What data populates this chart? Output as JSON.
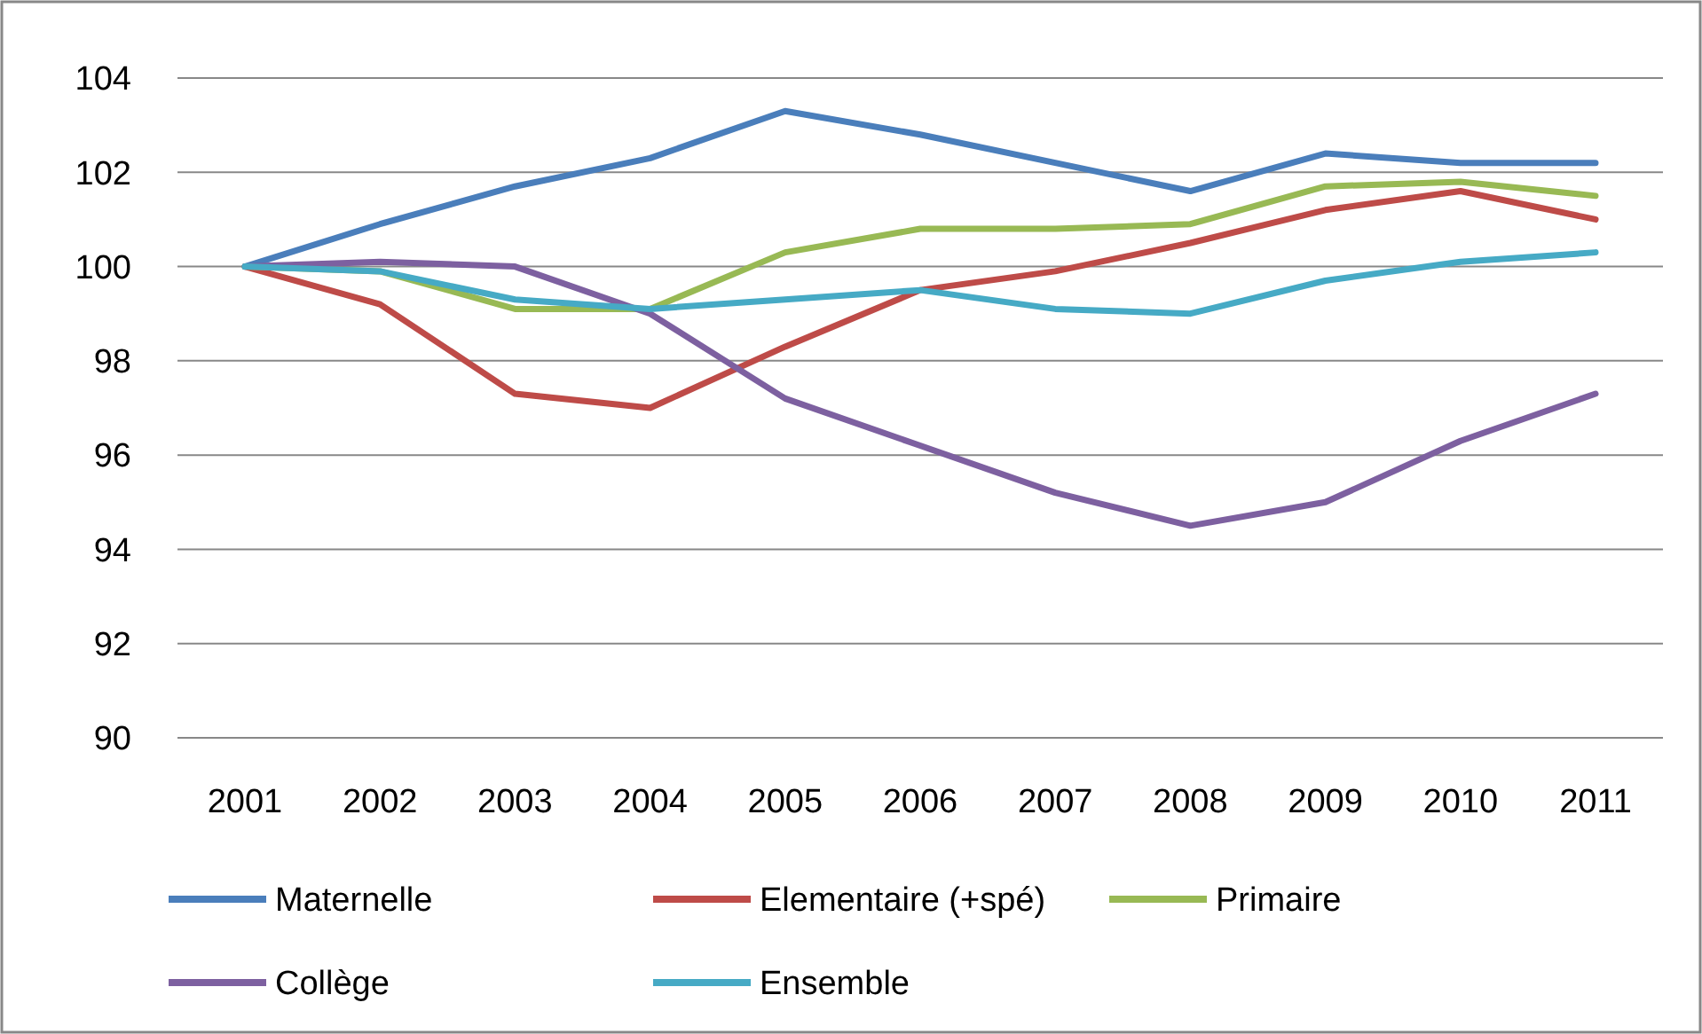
{
  "chart_data": {
    "type": "line",
    "categories": [
      "2001",
      "2002",
      "2003",
      "2004",
      "2005",
      "2006",
      "2007",
      "2008",
      "2009",
      "2010",
      "2011"
    ],
    "series": [
      {
        "name": "Maternelle",
        "color": "#4a7ebb",
        "values": [
          100,
          100.9,
          101.7,
          102.3,
          103.3,
          102.8,
          102.2,
          101.6,
          102.4,
          102.2,
          102.2
        ]
      },
      {
        "name": "Elementaire (+spé)",
        "color": "#be4b48",
        "values": [
          100,
          99.2,
          97.3,
          97.0,
          98.3,
          99.5,
          99.9,
          100.5,
          101.2,
          101.6,
          101.0
        ]
      },
      {
        "name": "Primaire",
        "color": "#98b954",
        "values": [
          100,
          99.9,
          99.1,
          99.1,
          100.3,
          100.8,
          100.8,
          100.9,
          101.7,
          101.8,
          101.5
        ]
      },
      {
        "name": "Collège",
        "color": "#7d60a0",
        "values": [
          100,
          100.1,
          100.0,
          99.0,
          97.2,
          96.2,
          95.2,
          94.5,
          95.0,
          96.3,
          97.3
        ]
      },
      {
        "name": "Ensemble",
        "color": "#46aac5",
        "values": [
          100,
          99.9,
          99.3,
          99.1,
          99.3,
          99.5,
          99.1,
          99.0,
          99.7,
          100.1,
          100.3
        ]
      }
    ],
    "ylim": [
      90,
      104
    ],
    "yticks": [
      90,
      92,
      94,
      96,
      98,
      100,
      102,
      104
    ],
    "grid": "y",
    "legend": "bottom",
    "marker": "none",
    "line_style": "solid"
  }
}
